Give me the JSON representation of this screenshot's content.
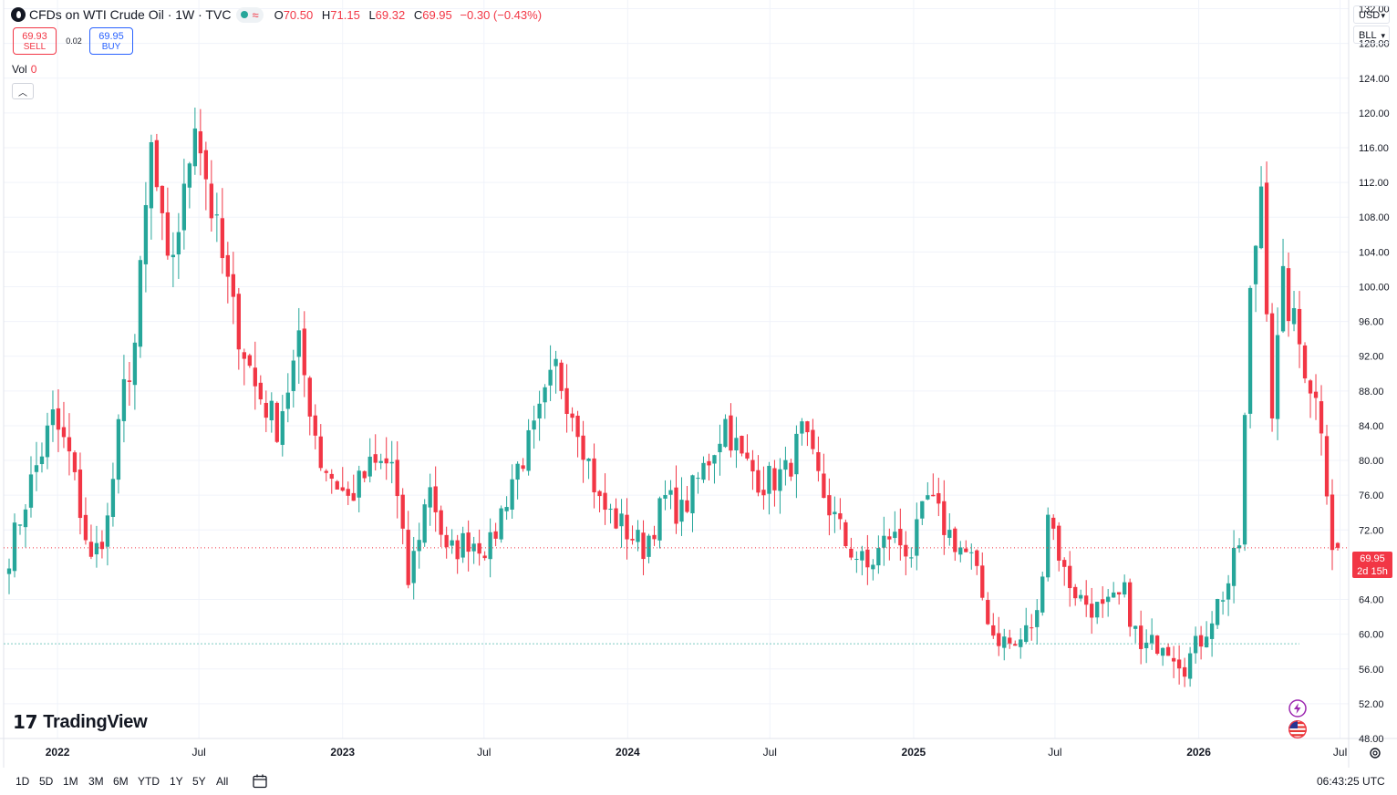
{
  "header": {
    "symbol_title": "CFDs on WTI Crude Oil · 1W · TVC",
    "ohlc": {
      "o_label": "O",
      "o": "70.50",
      "h_label": "H",
      "h": "71.15",
      "l_label": "L",
      "l": "69.32",
      "c_label": "C",
      "c": "69.95",
      "change": "−0.30 (−0.43%)"
    }
  },
  "trade": {
    "sell_price": "69.93",
    "sell_label": "SELL",
    "spread": "0.02",
    "buy_price": "69.95",
    "buy_label": "BUY"
  },
  "volume": {
    "label": "Vol",
    "value": "0"
  },
  "axis_controls": {
    "currency": "USD",
    "unit": "BLL"
  },
  "last_price": {
    "price": "69.95",
    "countdown": "2d 15h"
  },
  "branding": {
    "name": "TradingView"
  },
  "bottom_bar": {
    "ranges": [
      "1D",
      "5D",
      "1M",
      "3M",
      "6M",
      "YTD",
      "1Y",
      "5Y",
      "All"
    ],
    "clock": "06:43:25 UTC"
  },
  "colors": {
    "up": "#26a69a",
    "down": "#f23645",
    "grid": "#f0f3fa",
    "axis_text": "#131722",
    "reference_line": "#26a69a"
  },
  "chart_data": {
    "type": "candlestick",
    "title": "CFDs on WTI Crude Oil · 1W · TVC",
    "y_range": [
      48,
      133
    ],
    "y_ticks": [
      "132.00",
      "128.00",
      "124.00",
      "120.00",
      "116.00",
      "112.00",
      "108.00",
      "104.00",
      "100.00",
      "96.00",
      "92.00",
      "88.00",
      "84.00",
      "80.00",
      "76.00",
      "72.00",
      "64.00",
      "60.00",
      "56.00",
      "52.00",
      "48.00"
    ],
    "x_range": [
      "2021-10-24",
      "2026-07-12"
    ],
    "x_ticks": [
      {
        "date": "2022-01-01",
        "label": "2022"
      },
      {
        "date": "2022-07-01",
        "label": "Jul"
      },
      {
        "date": "2023-01-01",
        "label": "2023"
      },
      {
        "date": "2023-07-01",
        "label": "Jul"
      },
      {
        "date": "2024-01-01",
        "label": "2024"
      },
      {
        "date": "2024-07-01",
        "label": "Jul"
      },
      {
        "date": "2025-01-01",
        "label": "2025"
      },
      {
        "date": "2025-07-01",
        "label": "Jul"
      },
      {
        "date": "2026-01-01",
        "label": "2026"
      },
      {
        "date": "2026-07-01",
        "label": "Jul"
      }
    ],
    "last_close": 69.95,
    "reference_level": 58.9,
    "anchors": [
      {
        "date": "2021-10-31",
        "close": 69.3
      },
      {
        "date": "2021-11-28",
        "close": 77.5
      },
      {
        "date": "2021-12-26",
        "close": 84.8
      },
      {
        "date": "2022-01-16",
        "close": 80.5
      },
      {
        "date": "2022-02-13",
        "close": 68.2
      },
      {
        "date": "2022-03-06",
        "close": 73.0
      },
      {
        "date": "2022-03-27",
        "close": 88.0
      },
      {
        "date": "2022-04-10",
        "close": 93.5
      },
      {
        "date": "2022-05-01",
        "close": 115.8
      },
      {
        "date": "2022-05-22",
        "close": 101.5
      },
      {
        "date": "2022-06-12",
        "close": 110.0
      },
      {
        "date": "2022-06-26",
        "close": 120.3
      },
      {
        "date": "2022-07-17",
        "close": 109.0
      },
      {
        "date": "2022-08-14",
        "close": 97.0
      },
      {
        "date": "2022-09-11",
        "close": 88.5
      },
      {
        "date": "2022-10-09",
        "close": 84.0
      },
      {
        "date": "2022-11-06",
        "close": 93.0
      },
      {
        "date": "2022-12-04",
        "close": 80.0
      },
      {
        "date": "2023-01-08",
        "close": 75.5
      },
      {
        "date": "2023-02-05",
        "close": 79.0
      },
      {
        "date": "2023-03-05",
        "close": 79.8
      },
      {
        "date": "2023-03-26",
        "close": 66.0
      },
      {
        "date": "2023-04-23",
        "close": 77.5
      },
      {
        "date": "2023-05-14",
        "close": 69.0
      },
      {
        "date": "2023-06-11",
        "close": 71.0
      },
      {
        "date": "2023-07-09",
        "close": 70.0
      },
      {
        "date": "2023-08-06",
        "close": 78.0
      },
      {
        "date": "2023-09-03",
        "close": 83.0
      },
      {
        "date": "2023-10-01",
        "close": 90.5
      },
      {
        "date": "2023-10-29",
        "close": 84.5
      },
      {
        "date": "2023-11-26",
        "close": 75.0
      },
      {
        "date": "2023-12-24",
        "close": 72.5
      },
      {
        "date": "2024-01-21",
        "close": 70.0
      },
      {
        "date": "2024-02-18",
        "close": 75.5
      },
      {
        "date": "2024-03-10",
        "close": 74.0
      },
      {
        "date": "2024-04-07",
        "close": 79.0
      },
      {
        "date": "2024-05-05",
        "close": 84.5
      },
      {
        "date": "2024-05-26",
        "close": 80.0
      },
      {
        "date": "2024-06-23",
        "close": 77.5
      },
      {
        "date": "2024-07-21",
        "close": 78.5
      },
      {
        "date": "2024-08-11",
        "close": 83.0
      },
      {
        "date": "2024-09-08",
        "close": 76.0
      },
      {
        "date": "2024-10-06",
        "close": 70.5
      },
      {
        "date": "2024-11-03",
        "close": 67.5
      },
      {
        "date": "2024-12-01",
        "close": 71.5
      },
      {
        "date": "2024-12-29",
        "close": 69.5
      },
      {
        "date": "2025-01-19",
        "close": 75.5
      },
      {
        "date": "2025-02-16",
        "close": 71.5
      },
      {
        "date": "2025-03-16",
        "close": 68.5
      },
      {
        "date": "2025-04-13",
        "close": 60.0
      },
      {
        "date": "2025-05-11",
        "close": 58.5
      },
      {
        "date": "2025-06-08",
        "close": 62.0
      },
      {
        "date": "2025-06-22",
        "close": 74.5
      },
      {
        "date": "2025-07-13",
        "close": 67.0
      },
      {
        "date": "2025-08-03",
        "close": 64.0
      },
      {
        "date": "2025-08-31",
        "close": 62.5
      },
      {
        "date": "2025-09-28",
        "close": 64.5
      },
      {
        "date": "2025-10-19",
        "close": 58.0
      },
      {
        "date": "2025-11-16",
        "close": 59.5
      },
      {
        "date": "2025-12-14",
        "close": 56.5
      },
      {
        "date": "2026-01-04",
        "close": 59.5
      },
      {
        "date": "2026-01-25",
        "close": 63.5
      },
      {
        "date": "2026-02-08",
        "close": 66.0
      },
      {
        "date": "2026-02-22",
        "close": 70.5
      },
      {
        "date": "2026-03-08",
        "close": 98.5
      },
      {
        "date": "2026-03-22",
        "close": 112.0
      },
      {
        "date": "2026-04-05",
        "close": 86.0
      },
      {
        "date": "2026-04-19",
        "close": 100.0
      },
      {
        "date": "2026-05-03",
        "close": 95.5
      },
      {
        "date": "2026-05-24",
        "close": 89.0
      },
      {
        "date": "2026-06-07",
        "close": 84.5
      },
      {
        "date": "2026-06-21",
        "close": 70.5
      },
      {
        "date": "2026-06-28",
        "close": 69.95
      }
    ]
  }
}
